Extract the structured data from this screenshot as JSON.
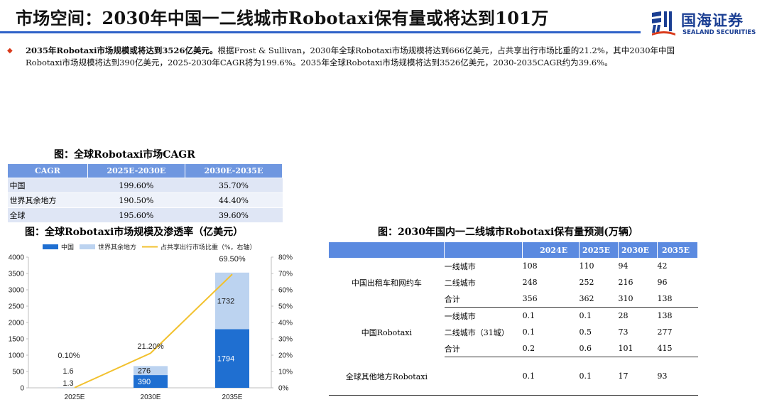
{
  "header": {
    "title": "市场空间：2030年中国一二线城市Robotaxi保有量或将达到101万",
    "logo_cn": "国海证券",
    "logo_en": "SEALAND SECURITIES",
    "accent_color": "#2f62c8"
  },
  "summary": {
    "bullet": "◆",
    "bold_lead": "2035年Robotaxi市场规模或将达到3526亿美元。",
    "line1_rest": "根据Frost & Sullivan，2030年全球Robotaxi市场规模将达到666亿美元，占共享出行市场比重的21.2%，其中2030年中国",
    "line2": "Robotaxi市场规模将达到390亿美元，2025-2030年CAGR将为199.6%。2035年全球Robotaxi市场规模将达到3526亿美元，2030-2035CAGR约为39.6%。"
  },
  "cagr_table": {
    "title": "图：全球Robotaxi市场CAGR",
    "headers": [
      "CAGR",
      "2025E-2030E",
      "2030E-2035E"
    ],
    "rows": [
      [
        "中国",
        "199.60%",
        "35.70%"
      ],
      [
        "世界其余地方",
        "190.50%",
        "44.40%"
      ],
      [
        "全球",
        "195.60%",
        "39.60%"
      ]
    ]
  },
  "chart": {
    "title": "图：全球Robotaxi市场规模及渗透率（亿美元）"
  },
  "chart_data": {
    "type": "bar",
    "stacked": true,
    "categories": [
      "2025E",
      "2030E",
      "2035E"
    ],
    "series": [
      {
        "name": "中国",
        "values": [
          1.3,
          390,
          1794
        ],
        "color": "#1f6fd1",
        "labels": [
          "1.3",
          "390",
          "1794"
        ]
      },
      {
        "name": "世界其余地方",
        "values": [
          1.6,
          276,
          1732
        ],
        "color": "#bcd3f0",
        "labels": [
          "1.6",
          "276",
          "1732"
        ]
      },
      {
        "name": "占共享出行市场比重（%，右轴）",
        "type": "line",
        "axis": "right",
        "values": [
          0.1,
          21.2,
          69.5
        ],
        "color": "#f2c12e",
        "labels": [
          "0.10%",
          "21.20%",
          "69.50%"
        ]
      }
    ],
    "ylim": [
      0,
      4000
    ],
    "yticks": [
      "0",
      "500",
      "1000",
      "1500",
      "2000",
      "2500",
      "3000",
      "3500",
      "4000"
    ],
    "y2lim": [
      0,
      80
    ],
    "y2ticks": [
      "0%",
      "10%",
      "20%",
      "30%",
      "40%",
      "50%",
      "60%",
      "70%",
      "80%"
    ],
    "legend": "top"
  },
  "fleet_table": {
    "title": "图：2030年国内一二线城市Robotaxi保有量预测(万辆）",
    "headers": [
      "",
      "",
      "2024E",
      "2025E",
      "2030E",
      "2035E"
    ],
    "groups": [
      {
        "name": "中国出租车和网约车",
        "rows": [
          {
            "label": "一线城市",
            "values": [
              "108",
              "110",
              "94",
              "42"
            ]
          },
          {
            "label": "二线城市",
            "values": [
              "248",
              "252",
              "216",
              "96"
            ]
          },
          {
            "label": "合计",
            "values": [
              "356",
              "362",
              "310",
              "138"
            ]
          }
        ]
      },
      {
        "name": "中国Robotaxi",
        "rows": [
          {
            "label": "一线城市",
            "values": [
              "0.1",
              "0.1",
              "28",
              "138"
            ]
          },
          {
            "label": "二线城市（31城）",
            "values": [
              "0.1",
              "0.5",
              "73",
              "277"
            ]
          },
          {
            "label": "合计",
            "values": [
              "0.2",
              "0.6",
              "101",
              "415"
            ]
          }
        ]
      },
      {
        "name": "全球其他地方Robotaxi",
        "rows": [
          {
            "label": "",
            "values": [
              "0.1",
              "0.1",
              "17",
              "93"
            ]
          }
        ]
      }
    ]
  }
}
